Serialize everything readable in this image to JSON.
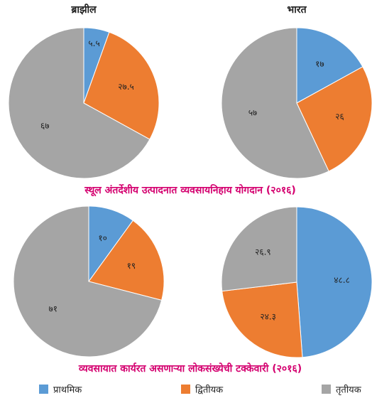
{
  "chart_data": [
    {
      "type": "pie",
      "title": "ब्राझील",
      "categories": [
        "प्राथमिक",
        "द्वितीयक",
        "तृतीयक"
      ],
      "colors": [
        "#5b9bd5",
        "#ed7d31",
        "#a5a5a5"
      ],
      "values": [
        5.5,
        27.5,
        67
      ],
      "value_labels": [
        "५.५",
        "२७.५",
        "६७"
      ]
    },
    {
      "type": "pie",
      "title": "भारत",
      "categories": [
        "प्राथमिक",
        "द्वितीयक",
        "तृतीयक"
      ],
      "colors": [
        "#5b9bd5",
        "#ed7d31",
        "#a5a5a5"
      ],
      "values": [
        17,
        26,
        57
      ],
      "value_labels": [
        "१७",
        "२६",
        "५७"
      ]
    },
    {
      "type": "pie",
      "categories": [
        "प्राथमिक",
        "द्वितीयक",
        "तृतीयक"
      ],
      "colors": [
        "#5b9bd5",
        "#ed7d31",
        "#a5a5a5"
      ],
      "values": [
        10,
        19,
        71
      ],
      "value_labels": [
        "१०",
        "१९",
        "७१"
      ]
    },
    {
      "type": "pie",
      "categories": [
        "प्राथमिक",
        "द्वितीयक",
        "तृतीयक"
      ],
      "colors": [
        "#5b9bd5",
        "#ed7d31",
        "#a5a5a5"
      ],
      "values": [
        48.8,
        24.3,
        26.9
      ],
      "value_labels": [
        "४८.८",
        "२४.३",
        "२६.९"
      ]
    }
  ],
  "captions": [
    "स्थूल अंतर्देशीय उत्पादनात व्यवसायनिहाय योगदान (२०१६)",
    "व्यवसायात कार्यरत असणाऱ्या लोकसंख्येची टक्केवारी (२०१६)"
  ]
}
